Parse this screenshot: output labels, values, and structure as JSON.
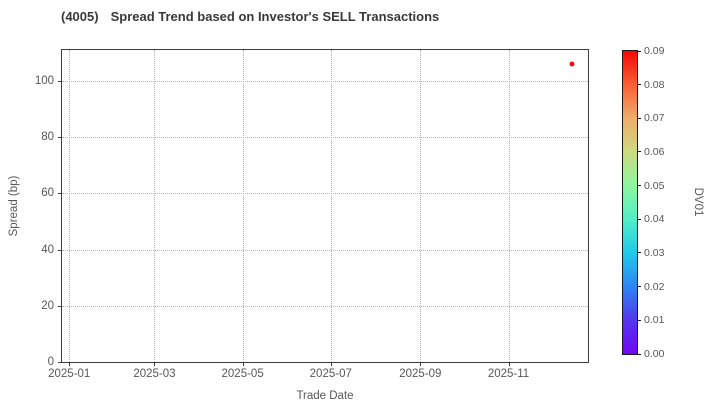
{
  "figure": {
    "title_ticker": "(4005)",
    "title_text": "Spread Trend based on Investor's SELL Transactions"
  },
  "chart_data": {
    "type": "scatter",
    "title": "(4005)  Spread Trend based on Investor's SELL Transactions",
    "xlabel": "Trade Date",
    "ylabel": "Spread (bp)",
    "xlim": [
      "2024-12-27",
      "2025-12-26"
    ],
    "ylim": [
      0,
      111
    ],
    "grid": true,
    "xticks": [
      {
        "date": "2025-01-01",
        "label": "2025-01"
      },
      {
        "date": "2025-03-01",
        "label": "2025-03"
      },
      {
        "date": "2025-05-01",
        "label": "2025-05"
      },
      {
        "date": "2025-07-01",
        "label": "2025-07"
      },
      {
        "date": "2025-09-01",
        "label": "2025-09"
      },
      {
        "date": "2025-11-01",
        "label": "2025-11"
      }
    ],
    "yticks": [
      0,
      20,
      40,
      60,
      80,
      100
    ],
    "series": [
      {
        "name": "Investor SELL transactions",
        "points": [
          {
            "date": "2025-12-15",
            "spread_bp": 106,
            "dv01": 0.09,
            "color": "#f40f0a"
          }
        ]
      }
    ],
    "colorbar": {
      "label": "DV01",
      "min": 0.0,
      "max": 0.09,
      "ticks": [
        "0.00",
        "0.01",
        "0.02",
        "0.03",
        "0.04",
        "0.05",
        "0.06",
        "0.07",
        "0.08",
        "0.09"
      ],
      "colormap": "rainbow",
      "gradient_stops": [
        {
          "at": 0.0,
          "color": "#7008f6"
        },
        {
          "at": 0.111,
          "color": "#5436ef"
        },
        {
          "at": 0.222,
          "color": "#2c86f3"
        },
        {
          "at": 0.333,
          "color": "#22c8ec"
        },
        {
          "at": 0.444,
          "color": "#50eec8"
        },
        {
          "at": 0.556,
          "color": "#8df79e"
        },
        {
          "at": 0.667,
          "color": "#cdda7f"
        },
        {
          "at": 0.778,
          "color": "#eead6c"
        },
        {
          "at": 0.889,
          "color": "#f95f33"
        },
        {
          "at": 1.0,
          "color": "#f80703"
        }
      ]
    },
    "colors": {
      "axis": "#3d3d3d",
      "grid": "#b3b3b3",
      "tick_label": "#575757",
      "title": "#393939"
    }
  }
}
